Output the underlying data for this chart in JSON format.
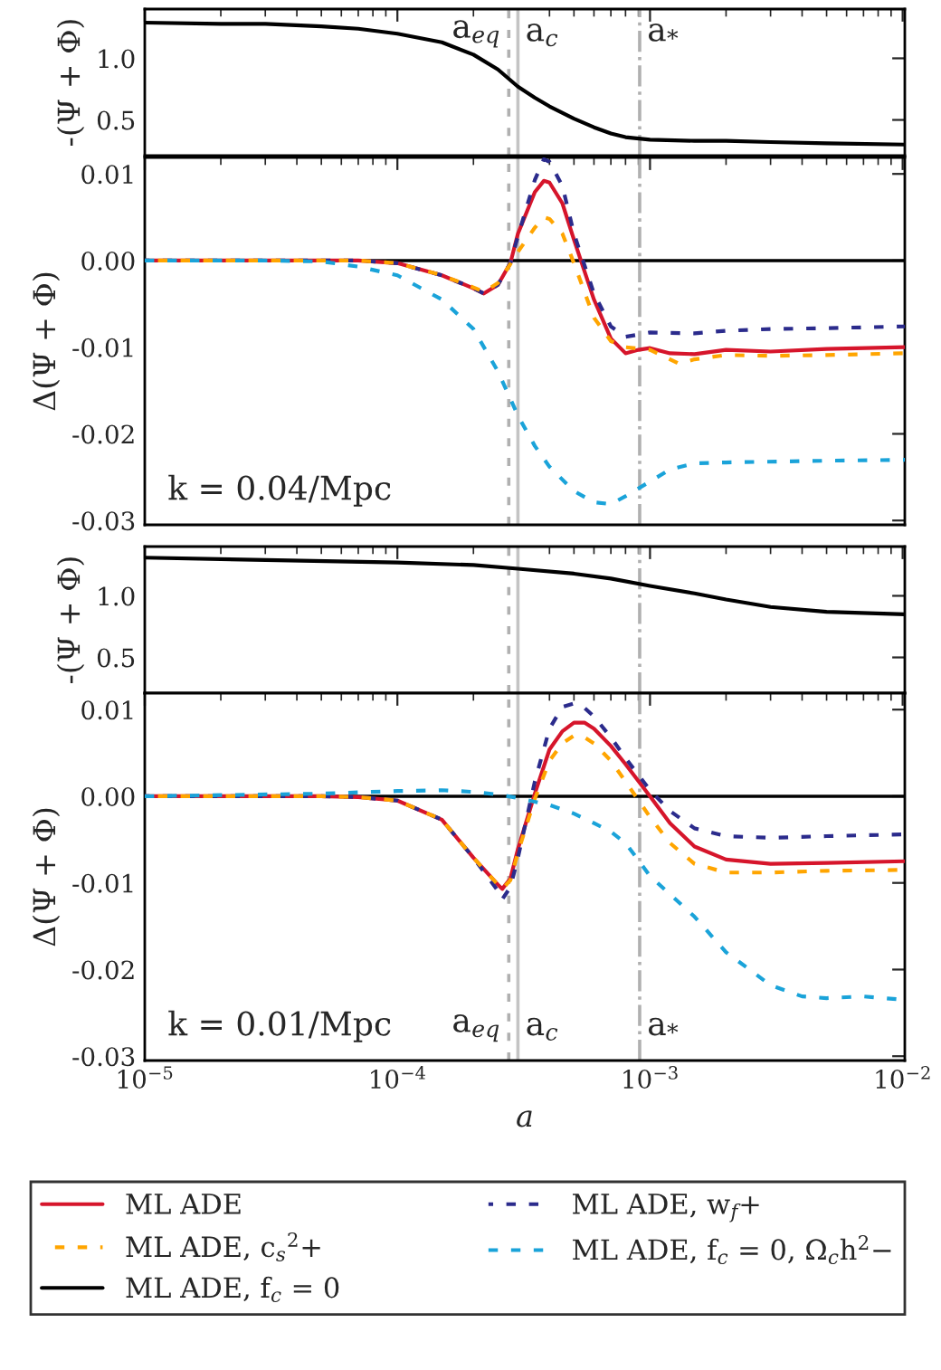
{
  "chart_data": [
    {
      "type": "line",
      "log": "x",
      "tick_labels": "y",
      "ylabel": "-(Ψ + Φ)",
      "xlim": [
        1e-05,
        0.0102
      ],
      "xticks": [
        {
          "value": 1e-05,
          "label": null
        },
        {
          "value": 0.0001,
          "label": null
        },
        {
          "value": 0.001,
          "label": null
        },
        {
          "value": 0.01,
          "label": null
        }
      ],
      "ylim": [
        0.21,
        1.4
      ],
      "yticks": [
        0.5,
        {
          "value": 1.0,
          "label": "1.0"
        }
      ],
      "ref_lines": [
        {
          "axis": "x",
          "value": 0.000276,
          "label": "a$_{eq}$",
          "color": "#b0b0b0",
          "line_style": "dashed"
        },
        {
          "axis": "x",
          "value": 0.0003,
          "label": "a$_{c}$",
          "color": "#c4c4c4",
          "line_style": "solid"
        },
        {
          "axis": "x",
          "value": 0.00091,
          "label": "a$_{*}$",
          "color": "#b0b0b0",
          "line_style": "dashdot"
        }
      ],
      "series": [
        {
          "color": "#000000",
          "line_style": "solid",
          "x": [
            1e-05,
            2e-05,
            3e-05,
            5e-05,
            7e-05,
            0.0001,
            0.00015,
            0.0002,
            0.00025,
            0.0003,
            0.00035,
            0.0004,
            0.0005,
            0.0006,
            0.0007,
            0.0008,
            0.001,
            0.0015,
            0.002,
            0.003,
            0.005,
            0.0102
          ],
          "values": [
            1.29,
            1.28,
            1.28,
            1.26,
            1.24,
            1.2,
            1.13,
            1.03,
            0.91,
            0.77,
            0.68,
            0.61,
            0.51,
            0.44,
            0.39,
            0.36,
            0.34,
            0.33,
            0.33,
            0.32,
            0.31,
            0.3
          ]
        }
      ]
    },
    {
      "type": "line",
      "log": "x",
      "tick_labels": "y",
      "ylabel": "Δ(Ψ + Φ)",
      "annotations": [
        "k = 0.04/Mpc"
      ],
      "legend": "bottom",
      "xlim": [
        1e-05,
        0.0102
      ],
      "xticks": [
        {
          "value": 1e-05,
          "label": null
        },
        {
          "value": 0.0001,
          "label": null
        },
        {
          "value": 0.001,
          "label": null
        },
        {
          "value": 0.01,
          "label": null
        }
      ],
      "ylim": [
        -0.0305,
        0.0119
      ],
      "yticks": [
        {
          "value": 0.01,
          "label": "0.01"
        },
        {
          "value": 0.0,
          "label": "0.00"
        },
        {
          "value": -0.01,
          "label": "-0.01"
        },
        {
          "value": -0.02,
          "label": "-0.02"
        },
        {
          "value": -0.03,
          "label": "-0.03"
        }
      ],
      "ref_lines": [
        {
          "axis": "x",
          "value": 0.000276,
          "color": "#b0b0b0",
          "line_style": "dashed"
        },
        {
          "axis": "x",
          "value": 0.0003,
          "color": "#c4c4c4",
          "line_style": "solid"
        },
        {
          "axis": "x",
          "value": 0.00091,
          "color": "#b0b0b0",
          "line_style": "dashdot"
        },
        {
          "axis": "y",
          "value": 0,
          "color": "#000000",
          "line_style": "solid"
        }
      ],
      "series": [
        {
          "name": "ML ADE",
          "color": "#d6152b",
          "line_style": "solid",
          "x": [
            1e-05,
            5e-05,
            7e-05,
            0.0001,
            0.00015,
            0.0002,
            0.00022,
            0.00025,
            0.00028,
            0.0003,
            0.00035,
            0.00038,
            0.0004,
            0.00045,
            0.0005,
            0.0006,
            0.0007,
            0.0008,
            0.0009,
            0.001,
            0.0012,
            0.0015,
            0.002,
            0.003,
            0.005,
            0.0102
          ],
          "values": [
            0,
            0,
            0,
            -0.0003,
            -0.0017,
            -0.0032,
            -0.0038,
            -0.0028,
            -0.0003,
            0.0031,
            0.0079,
            0.0092,
            0.009,
            0.0066,
            0.0024,
            -0.0045,
            -0.009,
            -0.0107,
            -0.0103,
            -0.0101,
            -0.0107,
            -0.0108,
            -0.0103,
            -0.0105,
            -0.0102,
            -0.01
          ]
        },
        {
          "name": "ML ADE, w$_{f}$+",
          "color": "#2b2b8c",
          "line_style": "dashed",
          "x": [
            1e-05,
            5e-05,
            7e-05,
            0.0001,
            0.00015,
            0.0002,
            0.00022,
            0.00025,
            0.00028,
            0.0003,
            0.00035,
            0.00038,
            0.0004,
            0.00045,
            0.0005,
            0.0006,
            0.0007,
            0.0008,
            0.001,
            0.0015,
            0.002,
            0.003,
            0.005,
            0.0102
          ],
          "values": [
            0,
            0,
            0,
            -0.0003,
            -0.0017,
            -0.0032,
            -0.0038,
            -0.0028,
            -0.0003,
            0.0028,
            0.0093,
            0.0117,
            0.0114,
            0.0086,
            0.0031,
            -0.0038,
            -0.0076,
            -0.0088,
            -0.0083,
            -0.0084,
            -0.0081,
            -0.0079,
            -0.0078,
            -0.0076
          ]
        },
        {
          "name": "ML ADE, c$_{s}$$^{2}$+",
          "color": "#ffa500",
          "line_style": "dashed",
          "x": [
            1e-05,
            5e-05,
            7e-05,
            0.0001,
            0.00015,
            0.0002,
            0.00022,
            0.00025,
            0.00028,
            0.0003,
            0.00035,
            0.00038,
            0.0004,
            0.00045,
            0.0005,
            0.0006,
            0.0007,
            0.0008,
            0.001,
            0.0012,
            0.0013,
            0.0015,
            0.002,
            0.003,
            0.005,
            0.0102
          ],
          "values": [
            0,
            0,
            0,
            -0.0003,
            -0.0017,
            -0.0031,
            -0.0036,
            -0.0026,
            -0.0004,
            0.001,
            0.0038,
            0.005,
            0.0048,
            0.0031,
            -0.0003,
            -0.0066,
            -0.0093,
            -0.01,
            -0.0103,
            -0.0114,
            -0.0119,
            -0.0114,
            -0.0109,
            -0.011,
            -0.0109,
            -0.0107
          ]
        },
        {
          "name": "ML ADE, f$_{c}$ = 0, Ω$_{c}$h$^{2}$−",
          "color": "#1aa3d9",
          "line_style": "dashed",
          "x": [
            1e-05,
            3e-05,
            5e-05,
            7e-05,
            0.0001,
            0.00015,
            0.0002,
            0.00025,
            0.0003,
            0.00035,
            0.0004,
            0.0005,
            0.0006,
            0.0007,
            0.0008,
            0.001,
            0.0012,
            0.0015,
            0.002,
            0.005,
            0.0102
          ],
          "values": [
            0,
            0,
            -0.0001,
            -0.0007,
            -0.0017,
            -0.0045,
            -0.0079,
            -0.0128,
            -0.0179,
            -0.0214,
            -0.0238,
            -0.0266,
            -0.0279,
            -0.0281,
            -0.0272,
            -0.0255,
            -0.0241,
            -0.0234,
            -0.0233,
            -0.0231,
            -0.023
          ]
        }
      ]
    },
    {
      "type": "line",
      "log": "x",
      "tick_labels": "y",
      "ylabel": "-(Ψ + Φ)",
      "xlim": [
        1e-05,
        0.0102
      ],
      "xticks": [
        {
          "value": 1e-05,
          "label": null
        },
        {
          "value": 0.0001,
          "label": null
        },
        {
          "value": 0.001,
          "label": null
        },
        {
          "value": 0.01,
          "label": null
        }
      ],
      "ylim": [
        0.21,
        1.4
      ],
      "yticks": [
        0.5,
        {
          "value": 1.0,
          "label": "1.0"
        }
      ],
      "legend": "bottom",
      "ref_lines": [
        {
          "axis": "x",
          "value": 0.000276,
          "color": "#b0b0b0",
          "line_style": "dashed"
        },
        {
          "axis": "x",
          "value": 0.0003,
          "color": "#c4c4c4",
          "line_style": "solid"
        },
        {
          "axis": "x",
          "value": 0.00091,
          "color": "#b0b0b0",
          "line_style": "dashdot"
        }
      ],
      "series": [
        {
          "name": "ML ADE, f$_{c}$ = 0",
          "color": "#000000",
          "line_style": "solid",
          "x": [
            1e-05,
            0.0001,
            0.0002,
            0.0003,
            0.0005,
            0.0007,
            0.001,
            0.0015,
            0.002,
            0.003,
            0.005,
            0.0102
          ],
          "values": [
            1.31,
            1.27,
            1.25,
            1.22,
            1.18,
            1.14,
            1.08,
            1.02,
            0.97,
            0.91,
            0.87,
            0.85
          ]
        }
      ]
    },
    {
      "type": "line",
      "log": "x",
      "xlabel": "a",
      "ylabel": "Δ(Ψ + Φ)",
      "annotations": [
        "k = 0.01/Mpc"
      ],
      "xlim": [
        1e-05,
        0.0102
      ],
      "xticks": [
        {
          "value": 1e-05,
          "label": "10$^{−5}$"
        },
        {
          "value": 0.0001,
          "label": "10$^{−4}$"
        },
        {
          "value": 0.001,
          "label": "10$^{−3}$"
        },
        {
          "value": 0.01,
          "label": "10$^{−2}$"
        }
      ],
      "ylim": [
        -0.0305,
        0.0119
      ],
      "yticks": [
        {
          "value": 0.01,
          "label": "0.01"
        },
        {
          "value": 0.0,
          "label": "0.00"
        },
        {
          "value": -0.01,
          "label": "-0.01"
        },
        {
          "value": -0.02,
          "label": "-0.02"
        },
        {
          "value": -0.03,
          "label": "-0.03"
        }
      ],
      "ref_lines": [
        {
          "axis": "x",
          "value": 0.000276,
          "label": "a$_{eq}$",
          "color": "#b0b0b0",
          "line_style": "dashed"
        },
        {
          "axis": "x",
          "value": 0.0003,
          "label": "a$_{c}$",
          "color": "#c4c4c4",
          "line_style": "solid"
        },
        {
          "axis": "x",
          "value": 0.00091,
          "label": "a$_{*}$",
          "color": "#b0b0b0",
          "line_style": "dashdot"
        },
        {
          "axis": "y",
          "value": 0,
          "color": "#000000",
          "line_style": "solid"
        }
      ],
      "series": [
        {
          "color": "#d6152b",
          "line_style": "solid",
          "x": [
            1e-05,
            5e-05,
            7e-05,
            0.0001,
            0.00015,
            0.0002,
            0.00025,
            0.00026,
            0.00028,
            0.0003,
            0.00035,
            0.0004,
            0.00045,
            0.0005,
            0.00055,
            0.0006,
            0.0007,
            0.0008,
            0.001,
            0.0012,
            0.0015,
            0.002,
            0.003,
            0.005,
            0.0102
          ],
          "values": [
            0,
            0,
            -0.0001,
            -0.0005,
            -0.0027,
            -0.0071,
            -0.0102,
            -0.0107,
            -0.0095,
            -0.0061,
            0.0003,
            0.0054,
            0.0075,
            0.0085,
            0.0085,
            0.0078,
            0.0058,
            0.0037,
            0,
            -0.0031,
            -0.0058,
            -0.0073,
            -0.0078,
            -0.0077,
            -0.0075
          ]
        },
        {
          "color": "#2b2b8c",
          "line_style": "dashed",
          "x": [
            1e-05,
            5e-05,
            7e-05,
            0.0001,
            0.00015,
            0.0002,
            0.00025,
            0.00026,
            0.00028,
            0.0003,
            0.00035,
            0.0004,
            0.00045,
            0.0005,
            0.00055,
            0.0006,
            0.0007,
            0.0008,
            0.001,
            0.0012,
            0.0015,
            0.002,
            0.003,
            0.005,
            0.0102
          ],
          "values": [
            0,
            0,
            -0.0001,
            -0.0005,
            -0.0027,
            -0.0071,
            -0.0109,
            -0.0119,
            -0.0105,
            -0.0071,
            0.0017,
            0.0078,
            0.0103,
            0.0107,
            0.0102,
            0.0092,
            0.0068,
            0.0044,
            0.0007,
            -0.0017,
            -0.0037,
            -0.0046,
            -0.0048,
            -0.0046,
            -0.0044
          ]
        },
        {
          "color": "#ffa500",
          "line_style": "dashed",
          "x": [
            1e-05,
            5e-05,
            7e-05,
            0.0001,
            0.00015,
            0.0002,
            0.00025,
            0.00026,
            0.00028,
            0.0003,
            0.00035,
            0.0004,
            0.00045,
            0.0005,
            0.00055,
            0.0006,
            0.0007,
            0.0008,
            0.001,
            0.0012,
            0.0015,
            0.002,
            0.003,
            0.005,
            0.0102
          ],
          "values": [
            0,
            0,
            -0.0001,
            -0.0005,
            -0.0027,
            -0.0071,
            -0.0102,
            -0.0107,
            -0.0097,
            -0.0065,
            -0.0003,
            0.0041,
            0.0061,
            0.007,
            0.0068,
            0.0061,
            0.0041,
            0.0017,
            -0.0024,
            -0.0054,
            -0.0078,
            -0.0088,
            -0.0088,
            -0.0086,
            -0.0085
          ]
        },
        {
          "color": "#1aa3d9",
          "line_style": "dashed",
          "x": [
            1e-05,
            5e-05,
            0.0001,
            0.00015,
            0.0002,
            0.00025,
            0.0003,
            0.0004,
            0.0005,
            0.0006,
            0.0007,
            0.0008,
            0.001,
            0.0015,
            0.002,
            0.003,
            0.004,
            0.005,
            0.007,
            0.0102
          ],
          "values": [
            0,
            0.0003,
            0.0006,
            0.0007,
            0.0005,
            0.0002,
            -0.0002,
            -0.001,
            -0.002,
            -0.0031,
            -0.0041,
            -0.0054,
            -0.0092,
            -0.0139,
            -0.018,
            -0.0218,
            -0.0231,
            -0.0233,
            -0.0231,
            -0.0235
          ]
        }
      ]
    }
  ]
}
